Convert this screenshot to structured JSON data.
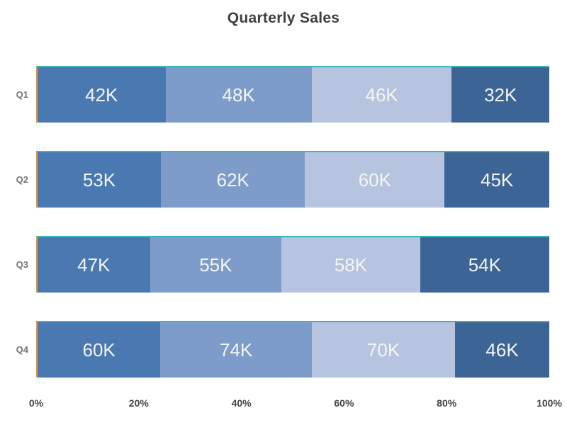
{
  "page": {
    "background": "#ffffff"
  },
  "chart_data": {
    "type": "bar",
    "variant": "horizontal-stacked-percent",
    "title": "Quarterly Sales",
    "categories": [
      "Q1",
      "Q2",
      "Q3",
      "Q4"
    ],
    "unit": "K",
    "series": [
      {
        "name": "series-1",
        "color": "#4a79b2",
        "values": [
          42,
          53,
          47,
          60
        ],
        "labels": [
          "42K",
          "53K",
          "47K",
          "60K"
        ]
      },
      {
        "name": "series-2",
        "color": "#7e9cc9",
        "values": [
          48,
          62,
          55,
          74
        ],
        "labels": [
          "48K",
          "62K",
          "55K",
          "74K"
        ]
      },
      {
        "name": "series-3",
        "color": "#b7c4df",
        "values": [
          46,
          60,
          58,
          70
        ],
        "labels": [
          "46K",
          "60K",
          "58K",
          "70K"
        ]
      },
      {
        "name": "series-4",
        "color": "#3c6494",
        "values": [
          32,
          45,
          54,
          46
        ],
        "labels": [
          "32K",
          "45K",
          "54K",
          "46K"
        ]
      }
    ],
    "x_axis": {
      "ticks": [
        "0%",
        "20%",
        "40%",
        "60%",
        "80%",
        "100%"
      ],
      "min": 0,
      "max": 100,
      "grid": false
    },
    "legend": "none",
    "colors": {
      "bar_top_accent": "#38b6c0",
      "bar_left_accent": "#e2994b",
      "title_text": "#3f3f3f",
      "category_text": "#757575",
      "tick_text": "#454545",
      "value_text": "#f5f5f5"
    }
  }
}
